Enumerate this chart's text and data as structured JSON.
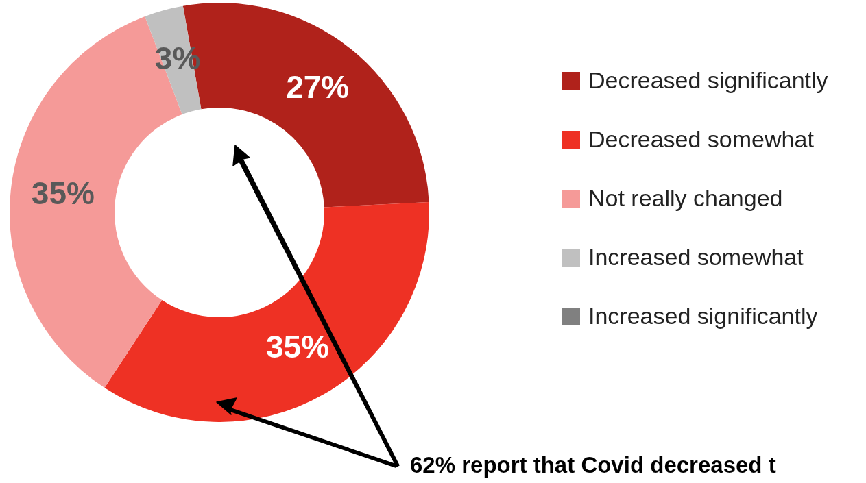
{
  "chart_data": {
    "type": "donut",
    "categories": [
      "Decreased significantly",
      "Decreased somewhat",
      "Not really changed",
      "Increased somewhat",
      "Increased significantly"
    ],
    "values": [
      27,
      35,
      35,
      3,
      0
    ],
    "colors": [
      "#b0221b",
      "#ee3124",
      "#f59a98",
      "#c0c0c0",
      "#808080"
    ],
    "value_labels": [
      "27%",
      "35%",
      "35%",
      "3%",
      null
    ],
    "legend": "right",
    "annotations": [
      "62% report that Covid decreased t"
    ]
  }
}
